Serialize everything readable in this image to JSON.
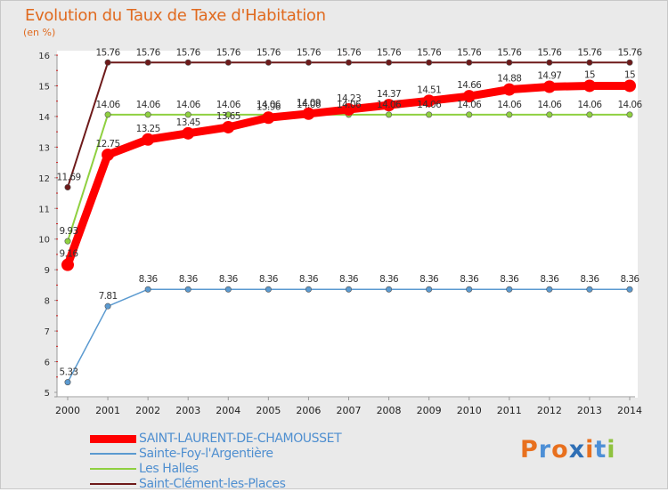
{
  "header": {
    "title": "Evolution du Taux de Taxe d'Habitation",
    "unit": "(en %)"
  },
  "brand": {
    "letters": [
      "P",
      "r",
      "o",
      "x",
      "i",
      "t",
      "i"
    ],
    "colors": [
      "#e8701e",
      "#4d8fd6",
      "#e8701e",
      "#2f6fb5",
      "#e8701e",
      "#4d8fd6",
      "#8fc23f"
    ]
  },
  "chart_data": {
    "type": "line",
    "title": "Evolution du Taux de Taxe d'Habitation",
    "ylabel": "(en %)",
    "xlabel": "",
    "x": [
      "2000",
      "2001",
      "2002",
      "2003",
      "2004",
      "2005",
      "2006",
      "2007",
      "2008",
      "2009",
      "2010",
      "2011",
      "2012",
      "2013",
      "2014"
    ],
    "yticks": [
      "5",
      "6",
      "7",
      "8",
      "9",
      "10",
      "11",
      "12",
      "13",
      "14",
      "15",
      "16"
    ],
    "ylim": [
      5,
      16
    ],
    "grid": false,
    "legend": "bottom-left",
    "series": [
      {
        "name": "Saint-Clément-les-Places",
        "color": "#6e1a1a",
        "labels": [
          "11.69",
          "15.76",
          "15.76",
          "15.76",
          "15.76",
          "15.76",
          "15.76",
          "15.76",
          "15.76",
          "15.76",
          "15.76",
          "15.76",
          "15.76",
          "15.76",
          "15.76"
        ]
      },
      {
        "name": "Les Halles",
        "color": "#8fd040",
        "labels": [
          "9.93",
          "14.06",
          "14.06",
          "14.06",
          "14.06",
          "14.06",
          "14.06",
          "14.06",
          "14.06",
          "14.06",
          "14.06",
          "14.06",
          "14.06",
          "14.06",
          "14.06"
        ]
      },
      {
        "name": "Sainte-Foy-l'Argentière",
        "color": "#5b9ad0",
        "labels": [
          "5.33",
          "7.81",
          "8.36",
          "8.36",
          "8.36",
          "8.36",
          "8.36",
          "8.36",
          "8.36",
          "8.36",
          "8.36",
          "8.36",
          "8.36",
          "8.36",
          "8.36"
        ]
      },
      {
        "name": "SAINT-LAURENT-DE-CHAMOUSSET",
        "color": "#ff0000",
        "labels": [
          "9.16",
          "12.75",
          "13.25",
          "13.45",
          "13.65",
          "13.96",
          "14.09",
          "14.23",
          "14.37",
          "14.51",
          "14.66",
          "14.88",
          "14.97",
          "15",
          "15"
        ]
      }
    ],
    "legend_order": [
      "SAINT-LAURENT-DE-CHAMOUSSET",
      "Sainte-Foy-l'Argentière",
      "Les Halles",
      "Saint-Clément-les-Places"
    ]
  }
}
